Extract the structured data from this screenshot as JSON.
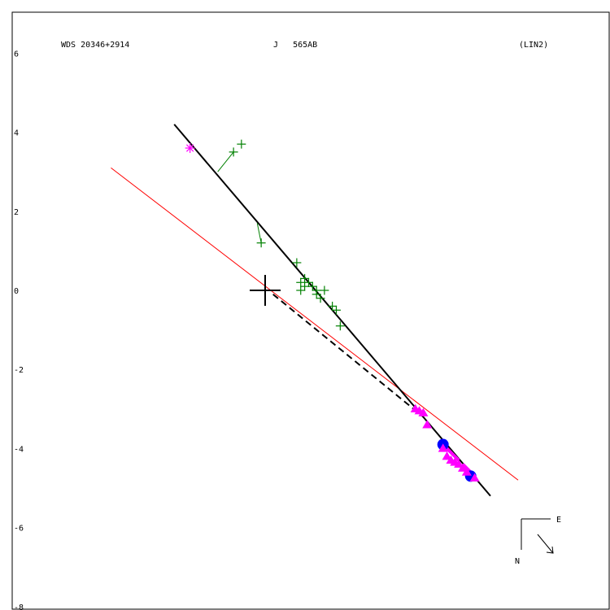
{
  "header": {
    "wds": "WDS 20346+2914",
    "discoverer": "J   565AB",
    "solution": "(LIN2)"
  },
  "compass": {
    "east": "E",
    "north": "N"
  },
  "chart_data": {
    "type": "scatter",
    "ylim": [
      -8,
      6
    ],
    "yticks": [
      6,
      4,
      2,
      0,
      -2,
      -4,
      -6,
      -8
    ],
    "origin": [
      0,
      0
    ],
    "colors": {
      "fit_line": "#000000",
      "ref_line": "#ff0000",
      "micrometer": "#008000",
      "speckle": "#ff00ff",
      "ephemeris": "#0000ff"
    },
    "fit_line": [
      [
        -2.3,
        4.2
      ],
      [
        5.7,
        -5.2
      ]
    ],
    "ref_line": [
      [
        -3.9,
        3.1
      ],
      [
        6.4,
        -4.8
      ]
    ],
    "dashed_line": [
      [
        0.2,
        -0.1
      ],
      [
        4.0,
        -3.2
      ]
    ],
    "micrometer_points": [
      [
        -0.8,
        3.5
      ],
      [
        -0.6,
        3.7
      ],
      [
        -0.1,
        1.2
      ],
      [
        0.8,
        0.7
      ],
      [
        0.9,
        0.2
      ],
      [
        0.9,
        0.0
      ],
      [
        1.0,
        0.1
      ],
      [
        1.0,
        0.3
      ],
      [
        1.1,
        0.2
      ],
      [
        1.2,
        0.1
      ],
      [
        1.3,
        0.0
      ],
      [
        1.3,
        -0.1
      ],
      [
        1.4,
        -0.2
      ],
      [
        1.5,
        0.0
      ],
      [
        1.7,
        -0.4
      ],
      [
        1.8,
        -0.5
      ],
      [
        1.9,
        -0.9
      ]
    ],
    "micrometer_segments": [
      [
        [
          -0.8,
          3.5
        ],
        [
          -1.2,
          3.0
        ]
      ],
      [
        [
          -0.1,
          1.2
        ],
        [
          -0.2,
          1.7
        ]
      ]
    ],
    "speckle_stars": [
      [
        -1.9,
        3.6
      ]
    ],
    "speckle_triangles": [
      [
        3.8,
        -3.0
      ],
      [
        3.9,
        -3.05
      ],
      [
        4.0,
        -3.1
      ],
      [
        4.1,
        -3.4
      ],
      [
        4.5,
        -4.0
      ],
      [
        4.6,
        -4.2
      ],
      [
        4.7,
        -4.3
      ],
      [
        4.8,
        -4.35
      ],
      [
        4.9,
        -4.4
      ],
      [
        5.0,
        -4.5
      ],
      [
        5.1,
        -4.6
      ],
      [
        5.3,
        -4.75
      ]
    ],
    "speckle_segments": [
      [
        [
          4.5,
          -3.9
        ],
        [
          4.9,
          -4.3
        ]
      ],
      [
        [
          5.0,
          -4.4
        ],
        [
          5.3,
          -4.7
        ]
      ]
    ],
    "ephemeris_points": [
      [
        4.5,
        -3.9
      ],
      [
        5.2,
        -4.7
      ]
    ]
  }
}
